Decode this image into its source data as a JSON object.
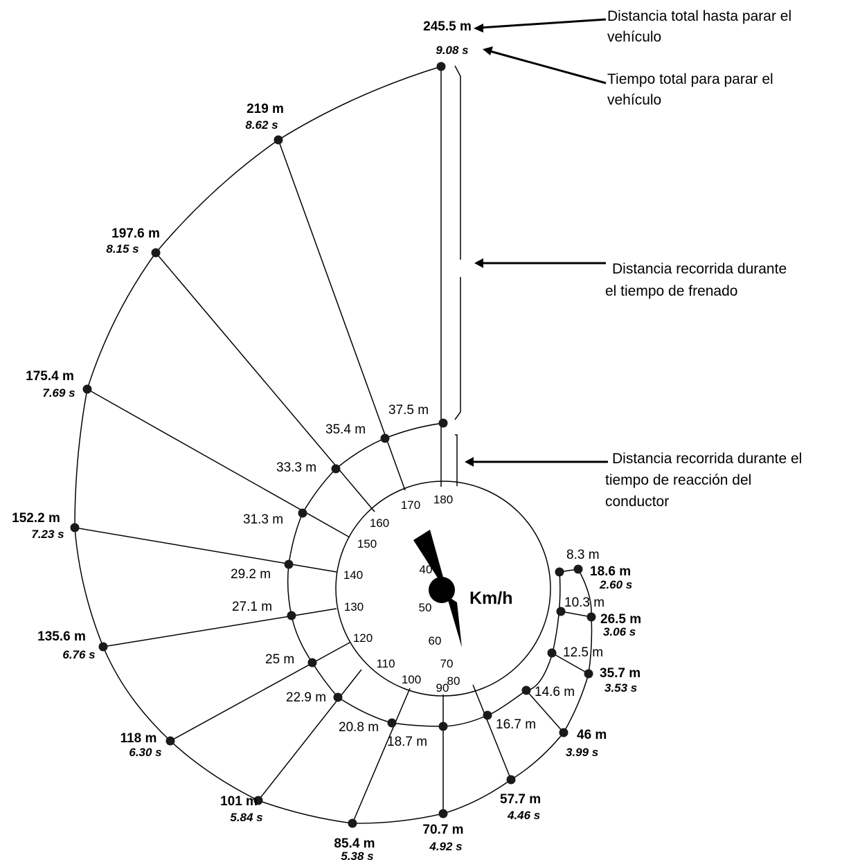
{
  "center_unit": "Km/h",
  "annotations": {
    "total_distance": [
      "Distancia total hasta parar el",
      "vehículo"
    ],
    "total_time": [
      "Tiempo total para parar el",
      "vehículo"
    ],
    "braking_distance": [
      "Distancia recorrida durante",
      "el tiempo de frenado"
    ],
    "reaction_distance": [
      "Distancia recorrida durante el",
      "tiempo de reacción del",
      "conductor"
    ]
  },
  "rows": [
    {
      "speed": "40",
      "reaction": "8.3 m",
      "total": "18.6 m",
      "time": "2.60 s"
    },
    {
      "speed": "50",
      "reaction": "10.3 m",
      "total": "26.5 m",
      "time": "3.06 s"
    },
    {
      "speed": "60",
      "reaction": "12.5 m",
      "total": "35.7 m",
      "time": "3.53 s"
    },
    {
      "speed": "70",
      "reaction": "14.6 m",
      "total": "46 m",
      "time": "3.99 s"
    },
    {
      "speed": "80",
      "reaction": "16.7 m",
      "total": "57.7 m",
      "time": "4.46 s"
    },
    {
      "speed": "90",
      "reaction": "18.7 m",
      "total": "70.7 m",
      "time": "4.92 s"
    },
    {
      "speed": "100",
      "reaction": "20.8 m",
      "total": "85.4 m",
      "time": "5.38 s"
    },
    {
      "speed": "110",
      "reaction": "22.9 m",
      "total": "101 m",
      "time": "5.84 s"
    },
    {
      "speed": "120",
      "reaction": "25 m",
      "total": "118 m",
      "time": "6.30 s"
    },
    {
      "speed": "130",
      "reaction": "27.1 m",
      "total": "135.6 m",
      "time": "6.76 s"
    },
    {
      "speed": "140",
      "reaction": "29.2 m",
      "total": "152.2 m",
      "time": "7.23 s"
    },
    {
      "speed": "150",
      "reaction": "31.3 m",
      "total": "175.4 m",
      "time": "7.69 s"
    },
    {
      "speed": "160",
      "reaction": "33.3 m",
      "total": "197.6 m",
      "time": "8.15 s"
    },
    {
      "speed": "170",
      "reaction": "35.4 m",
      "total": "219 m",
      "time": "8.62 s"
    },
    {
      "speed": "180",
      "reaction": "37.5 m",
      "total": "245.5 m",
      "time": "9.08 s"
    }
  ]
}
